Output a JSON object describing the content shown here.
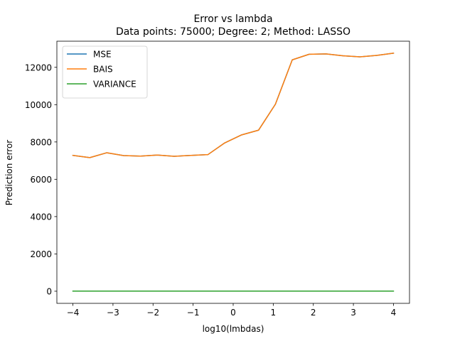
{
  "chart_data": {
    "type": "line",
    "title": "Error vs lambda",
    "subtitle": "Data points: 75000; Degree: 2; Method: LASSO",
    "xlabel": "log10(lmbdas)",
    "ylabel": "Prediction error",
    "xlim": [
      -4.4,
      4.4
    ],
    "ylim": [
      -650,
      13400
    ],
    "xticks": [
      -4,
      -3,
      -2,
      -1,
      0,
      1,
      2,
      3,
      4
    ],
    "xtick_labels": [
      "−4",
      "−3",
      "−2",
      "−1",
      "0",
      "1",
      "2",
      "3",
      "4"
    ],
    "yticks": [
      0,
      2000,
      4000,
      6000,
      8000,
      10000,
      12000
    ],
    "ytick_labels": [
      "0",
      "2000",
      "4000",
      "6000",
      "8000",
      "10000",
      "12000"
    ],
    "grid": false,
    "legend_position": "top-left",
    "x": [
      -4.0,
      -3.579,
      -3.158,
      -2.737,
      -2.316,
      -1.895,
      -1.474,
      -1.053,
      -0.632,
      -0.211,
      0.211,
      0.632,
      1.053,
      1.474,
      1.895,
      2.316,
      2.737,
      3.158,
      3.579,
      4.0
    ],
    "series": [
      {
        "name": "MSE",
        "color": "#1f77b4",
        "values": [
          7280,
          7160,
          7420,
          7270,
          7240,
          7300,
          7230,
          7280,
          7320,
          7950,
          8380,
          8630,
          10020,
          12400,
          12700,
          12720,
          12620,
          12560,
          12640,
          12760
        ]
      },
      {
        "name": "BAIS",
        "color": "#ff7f0e",
        "values": [
          7280,
          7160,
          7420,
          7270,
          7240,
          7300,
          7230,
          7280,
          7320,
          7950,
          8380,
          8630,
          10020,
          12400,
          12700,
          12720,
          12620,
          12560,
          12640,
          12760
        ]
      },
      {
        "name": "VARIANCE",
        "color": "#2ca02c",
        "values": [
          5,
          5,
          5,
          5,
          5,
          5,
          5,
          5,
          5,
          5,
          5,
          5,
          5,
          5,
          5,
          5,
          5,
          5,
          5,
          5
        ]
      }
    ]
  }
}
